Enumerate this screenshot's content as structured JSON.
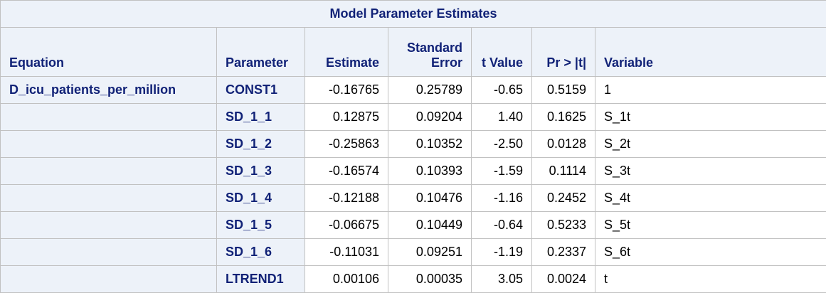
{
  "table": {
    "title": "Model Parameter Estimates",
    "headers": {
      "equation": "Equation",
      "parameter": "Parameter",
      "estimate": "Estimate",
      "std_error_line1": "Standard",
      "std_error_line2": "Error",
      "t_value": "t Value",
      "pr": "Pr > |t|",
      "variable": "Variable"
    },
    "rows": [
      {
        "equation": "D_icu_patients_per_million",
        "parameter": "CONST1",
        "estimate": "-0.16765",
        "std_error": "0.25789",
        "t_value": "-0.65",
        "pr": "0.5159",
        "variable": "1"
      },
      {
        "equation": "",
        "parameter": "SD_1_1",
        "estimate": "0.12875",
        "std_error": "0.09204",
        "t_value": "1.40",
        "pr": "0.1625",
        "variable": "S_1t"
      },
      {
        "equation": "",
        "parameter": "SD_1_2",
        "estimate": "-0.25863",
        "std_error": "0.10352",
        "t_value": "-2.50",
        "pr": "0.0128",
        "variable": "S_2t"
      },
      {
        "equation": "",
        "parameter": "SD_1_3",
        "estimate": "-0.16574",
        "std_error": "0.10393",
        "t_value": "-1.59",
        "pr": "0.1114",
        "variable": "S_3t"
      },
      {
        "equation": "",
        "parameter": "SD_1_4",
        "estimate": "-0.12188",
        "std_error": "0.10476",
        "t_value": "-1.16",
        "pr": "0.2452",
        "variable": "S_4t"
      },
      {
        "equation": "",
        "parameter": "SD_1_5",
        "estimate": "-0.06675",
        "std_error": "0.10449",
        "t_value": "-0.64",
        "pr": "0.5233",
        "variable": "S_5t"
      },
      {
        "equation": "",
        "parameter": "SD_1_6",
        "estimate": "-0.11031",
        "std_error": "0.09251",
        "t_value": "-1.19",
        "pr": "0.2337",
        "variable": "S_6t"
      },
      {
        "equation": "",
        "parameter": "LTREND1",
        "estimate": "0.00106",
        "std_error": "0.00035",
        "t_value": "3.05",
        "pr": "0.0024",
        "variable": "t"
      }
    ]
  },
  "colors": {
    "header_background": "#edf2f9",
    "header_text": "#112277",
    "border": "#c1c1c1"
  }
}
